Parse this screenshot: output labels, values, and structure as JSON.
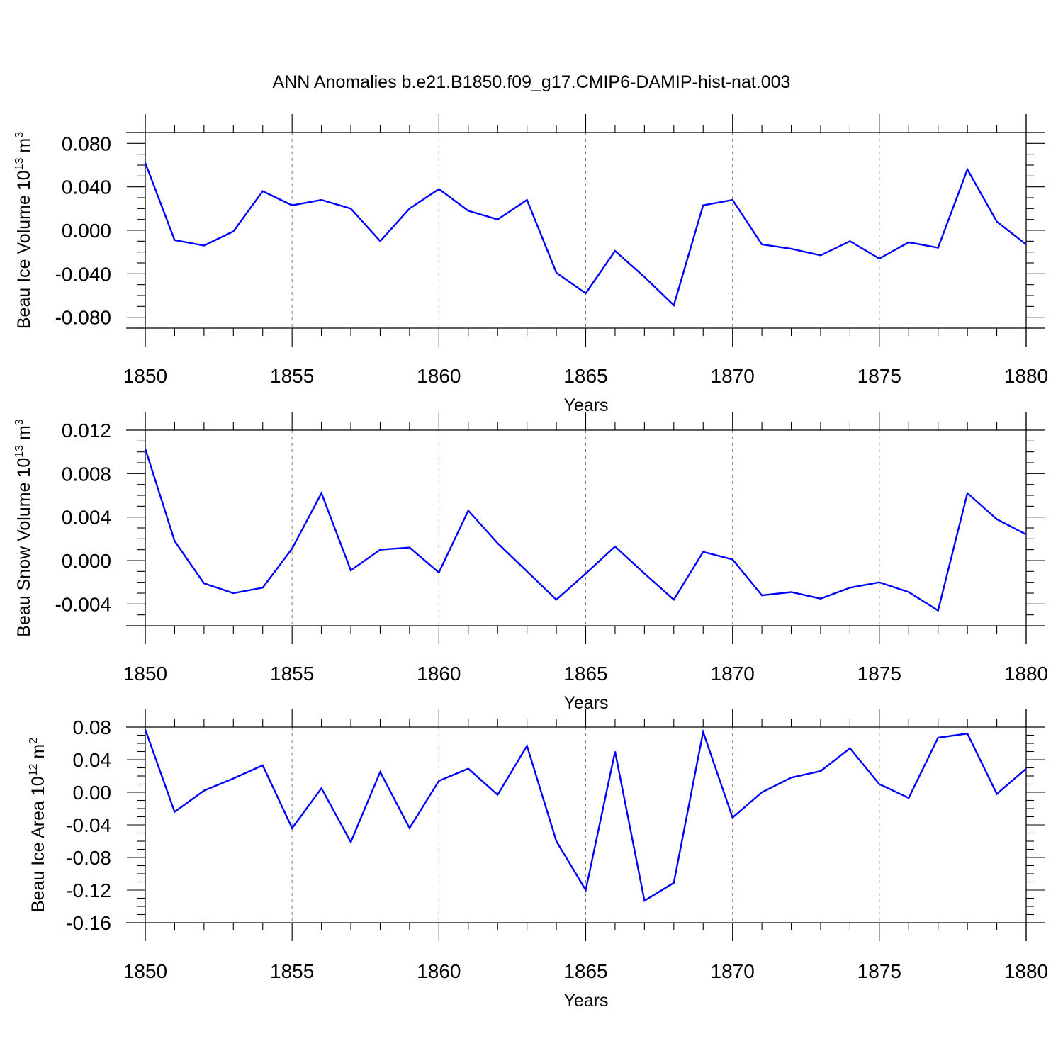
{
  "chart_data": [
    {
      "type": "line",
      "title": "ANN Anomalies b.e21.B1850.f09_g17.CMIP6-DAMIP-hist-nat.003",
      "ylabel": "Beau Ice Volume 10",
      "ylabel_exp": "13",
      "ylabel_unit": " m",
      "ylabel_unit_exp": "3",
      "xlabel": "Years",
      "xlim": [
        1850,
        1880
      ],
      "ylim": [
        -0.09,
        0.09
      ],
      "yticks": [
        -0.08,
        -0.04,
        0.0,
        0.04,
        0.08
      ],
      "ytick_labels": [
        "-0.080",
        "-0.040",
        "0.000",
        "0.040",
        "0.080"
      ],
      "xticks": [
        1850,
        1855,
        1860,
        1865,
        1870,
        1875,
        1880
      ],
      "xtick_labels": [
        "1850",
        "1855",
        "1860",
        "1865",
        "1870",
        "1875",
        "1880"
      ],
      "x": [
        1850,
        1851,
        1852,
        1853,
        1854,
        1855,
        1856,
        1857,
        1858,
        1859,
        1860,
        1861,
        1862,
        1863,
        1864,
        1865,
        1866,
        1867,
        1868,
        1869,
        1870,
        1871,
        1872,
        1873,
        1874,
        1875,
        1876,
        1877,
        1878,
        1879,
        1880
      ],
      "values": [
        0.062,
        -0.009,
        -0.014,
        -0.001,
        0.036,
        0.023,
        0.028,
        0.02,
        -0.01,
        0.02,
        0.038,
        0.018,
        0.01,
        0.028,
        -0.039,
        -0.058,
        -0.019,
        -0.043,
        -0.069,
        0.023,
        0.028,
        -0.013,
        -0.017,
        -0.023,
        -0.01,
        -0.026,
        -0.011,
        -0.016,
        0.056,
        0.008,
        -0.013
      ],
      "grid": "vertical dashed at major x ticks",
      "line_color": "#0000ff"
    },
    {
      "type": "line",
      "ylabel": "Beau Snow Volume 10",
      "ylabel_exp": "13",
      "ylabel_unit": " m",
      "ylabel_unit_exp": "3",
      "xlabel": "Years",
      "xlim": [
        1850,
        1880
      ],
      "ylim": [
        -0.006,
        0.012
      ],
      "yticks": [
        -0.004,
        0.0,
        0.004,
        0.008,
        0.012
      ],
      "ytick_labels": [
        "-0.004",
        "0.000",
        "0.004",
        "0.008",
        "0.012"
      ],
      "xticks": [
        1850,
        1855,
        1860,
        1865,
        1870,
        1875,
        1880
      ],
      "xtick_labels": [
        "1850",
        "1855",
        "1860",
        "1865",
        "1870",
        "1875",
        "1880"
      ],
      "x": [
        1850,
        1851,
        1852,
        1853,
        1854,
        1855,
        1856,
        1857,
        1858,
        1859,
        1860,
        1861,
        1862,
        1863,
        1864,
        1865,
        1866,
        1867,
        1868,
        1869,
        1870,
        1871,
        1872,
        1873,
        1874,
        1875,
        1876,
        1877,
        1878,
        1879,
        1880
      ],
      "values": [
        0.0103,
        0.0018,
        -0.0021,
        -0.003,
        -0.0025,
        0.0011,
        0.0062,
        -0.0009,
        0.001,
        0.0012,
        -0.0011,
        0.0046,
        0.0016,
        -0.001,
        -0.0036,
        -0.0012,
        0.0013,
        -0.0012,
        -0.0036,
        0.0008,
        0.0001,
        -0.0032,
        -0.0029,
        -0.0035,
        -0.0025,
        -0.002,
        -0.0029,
        -0.0046,
        0.0062,
        0.0038,
        0.0024
      ],
      "grid": "vertical dashed at major x ticks",
      "line_color": "#0000ff"
    },
    {
      "type": "line",
      "ylabel": "Beau Ice Area 10",
      "ylabel_exp": "12",
      "ylabel_unit": " m",
      "ylabel_unit_exp": "2",
      "xlabel": "Years",
      "xlim": [
        1850,
        1880
      ],
      "ylim": [
        -0.16,
        0.08
      ],
      "yticks": [
        -0.16,
        -0.12,
        -0.08,
        -0.04,
        0.0,
        0.04,
        0.08
      ],
      "ytick_labels": [
        "-0.16",
        "-0.12",
        "-0.08",
        "-0.04",
        "0.00",
        "0.04",
        "0.08"
      ],
      "xticks": [
        1850,
        1855,
        1860,
        1865,
        1870,
        1875,
        1880
      ],
      "xtick_labels": [
        "1850",
        "1855",
        "1860",
        "1865",
        "1870",
        "1875",
        "1880"
      ],
      "x": [
        1850,
        1851,
        1852,
        1853,
        1854,
        1855,
        1856,
        1857,
        1858,
        1859,
        1860,
        1861,
        1862,
        1863,
        1864,
        1865,
        1866,
        1867,
        1868,
        1869,
        1870,
        1871,
        1872,
        1873,
        1874,
        1875,
        1876,
        1877,
        1878,
        1879,
        1880
      ],
      "values": [
        0.077,
        -0.024,
        0.002,
        0.017,
        0.033,
        -0.044,
        0.005,
        -0.061,
        0.025,
        -0.044,
        0.014,
        0.029,
        -0.003,
        0.057,
        -0.06,
        -0.12,
        0.05,
        -0.133,
        -0.111,
        0.074,
        -0.031,
        0.0,
        0.018,
        0.026,
        0.054,
        0.01,
        -0.007,
        0.067,
        0.072,
        -0.002,
        0.029
      ],
      "grid": "vertical dashed at major x ticks",
      "line_color": "#0000ff"
    }
  ]
}
